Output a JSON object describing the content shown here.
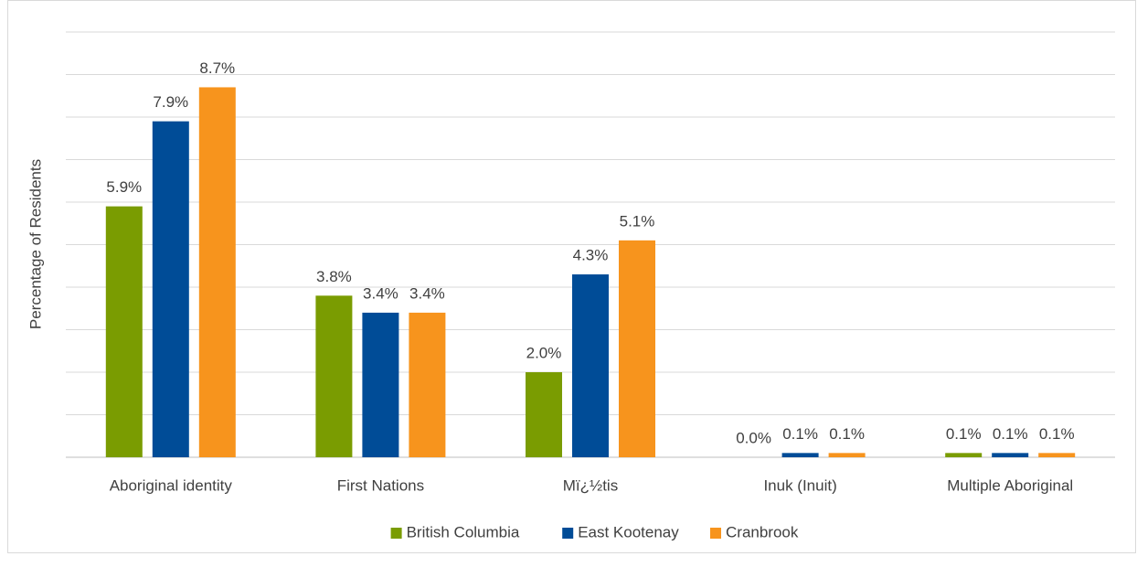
{
  "chart_data": {
    "type": "bar",
    "y_label": "Percentage of Residents",
    "categories": [
      "Aboriginal identity",
      "First Nations",
      "Mï¿½tis",
      "Inuk (Inuit)",
      "Multiple Aboriginal"
    ],
    "series": [
      {
        "name": "British Columbia",
        "color": "#7a9c01",
        "values": [
          5.9,
          3.8,
          2.0,
          0.0,
          0.1
        ],
        "value_labels": [
          "5.9%",
          "3.8%",
          "2.0%",
          "0.0%",
          "0.1%"
        ]
      },
      {
        "name": "East Kootenay",
        "color": "#004c97",
        "values": [
          7.9,
          3.4,
          4.3,
          0.1,
          0.1
        ],
        "value_labels": [
          "7.9%",
          "3.4%",
          "4.3%",
          "0.1%",
          "0.1%"
        ]
      },
      {
        "name": "Cranbrook",
        "color": "#f7941d",
        "values": [
          8.7,
          3.4,
          5.1,
          0.1,
          0.1
        ],
        "value_labels": [
          "8.7%",
          "3.4%",
          "5.1%",
          "0.1%",
          "0.1%"
        ]
      }
    ],
    "ylim": [
      0,
      10
    ],
    "yticks": [
      0,
      1,
      2,
      3,
      4,
      5,
      6,
      7,
      8,
      9,
      10
    ],
    "grid": true,
    "legend": "bottom"
  }
}
